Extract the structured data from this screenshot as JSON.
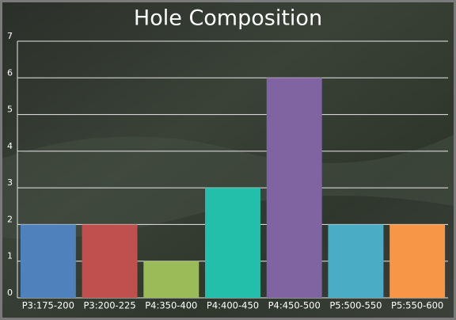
{
  "chart_data": {
    "type": "bar",
    "title": "Hole Composition",
    "categories": [
      "P3:175-200",
      "P3:200-225",
      "P4:350-400",
      "P4:400-450",
      "P4:450-500",
      "P5:500-550",
      "P5:550-600"
    ],
    "values": [
      2,
      2,
      1,
      3,
      6,
      2,
      2
    ],
    "colors": [
      "#4f81bd",
      "#c0504d",
      "#9bbb59",
      "#23bfaa",
      "#8064a2",
      "#4bacc6",
      "#f79646"
    ],
    "ylim": [
      0,
      7
    ],
    "yticks": [
      0,
      1,
      2,
      3,
      4,
      5,
      6,
      7
    ],
    "grid": true
  }
}
